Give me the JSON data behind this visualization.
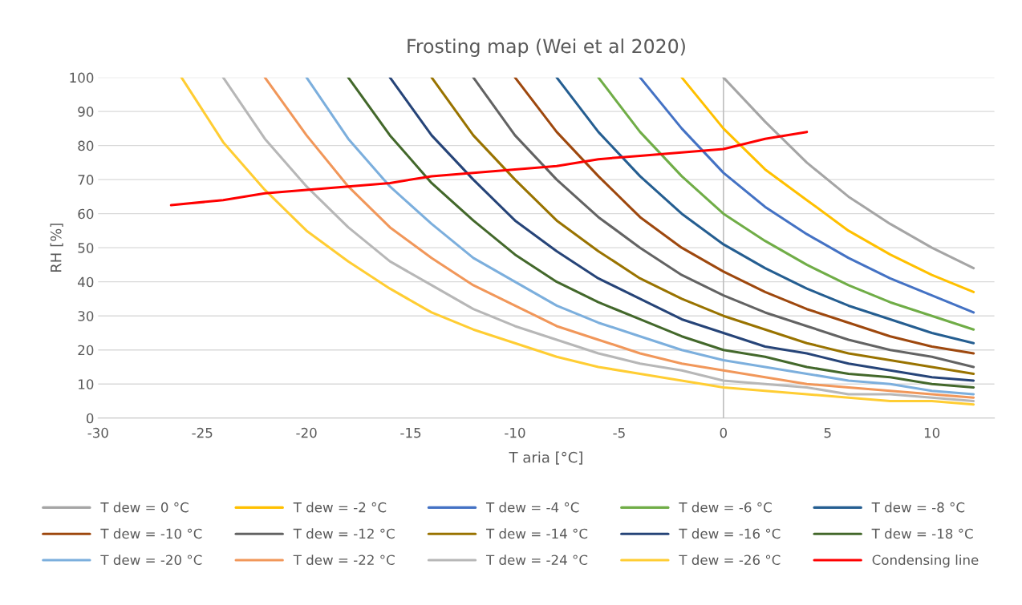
{
  "chart_data": {
    "type": "line",
    "title": "Frosting map (Wei et al 2020)",
    "xlabel": "T aria [°C]",
    "ylabel": "RH [%]",
    "xlim": [
      -30,
      13
    ],
    "xticks": [
      -30,
      -25,
      -20,
      -15,
      -10,
      -5,
      0,
      5,
      10
    ],
    "ylim": [
      0,
      100
    ],
    "yticks": [
      0,
      10,
      20,
      30,
      40,
      50,
      60,
      70,
      80,
      90,
      100
    ],
    "grid": "y",
    "legend": "bottom",
    "marker": "none",
    "line_style": "solid",
    "ref_lines": [
      {
        "axis": "x",
        "value": 0,
        "color": "#bfbfbf"
      }
    ],
    "series": [
      {
        "name": "T dew = 0 °C",
        "color": "#a5a5a5",
        "x": [
          0,
          2,
          4,
          6,
          8,
          10,
          12
        ],
        "values": [
          100,
          87,
          75,
          65,
          57,
          50,
          44
        ]
      },
      {
        "name": "T dew = -2 °C",
        "color": "#ffc000",
        "x": [
          -2,
          0,
          2,
          4,
          6,
          8,
          10,
          12
        ],
        "values": [
          100,
          85,
          73,
          64,
          55,
          48,
          42,
          37
        ]
      },
      {
        "name": "T dew = -4 °C",
        "color": "#4472c4",
        "x": [
          -4,
          -2,
          0,
          2,
          4,
          6,
          8,
          10,
          12
        ],
        "values": [
          100,
          85,
          72,
          62,
          54,
          47,
          41,
          36,
          31
        ]
      },
      {
        "name": "T dew = -6 °C",
        "color": "#70ad47",
        "x": [
          -6,
          -4,
          -2,
          0,
          2,
          4,
          6,
          8,
          10,
          12
        ],
        "values": [
          100,
          84,
          71,
          60,
          52,
          45,
          39,
          34,
          30,
          26
        ]
      },
      {
        "name": "T dew = -8 °C",
        "color": "#255e91",
        "x": [
          -8,
          -6,
          -4,
          -2,
          0,
          2,
          4,
          6,
          8,
          10,
          12
        ],
        "values": [
          100,
          84,
          71,
          60,
          51,
          44,
          38,
          33,
          29,
          25,
          22
        ]
      },
      {
        "name": "T dew = -10 °C",
        "color": "#9e480e",
        "x": [
          -10,
          -8,
          -6,
          -4,
          -2,
          0,
          2,
          4,
          6,
          8,
          10,
          12
        ],
        "values": [
          100,
          84,
          71,
          59,
          50,
          43,
          37,
          32,
          28,
          24,
          21,
          19
        ]
      },
      {
        "name": "T dew = -12 °C",
        "color": "#636363",
        "x": [
          -12,
          -10,
          -8,
          -6,
          -4,
          -2,
          0,
          2,
          4,
          6,
          8,
          10,
          12
        ],
        "values": [
          100,
          83,
          70,
          59,
          50,
          42,
          36,
          31,
          27,
          23,
          20,
          18,
          15
        ]
      },
      {
        "name": "T dew = -14 °C",
        "color": "#997300",
        "x": [
          -14,
          -12,
          -10,
          -8,
          -6,
          -4,
          -2,
          0,
          2,
          4,
          6,
          8,
          10,
          12
        ],
        "values": [
          100,
          83,
          70,
          58,
          49,
          41,
          35,
          30,
          26,
          22,
          19,
          17,
          15,
          13
        ]
      },
      {
        "name": "T dew = -16 °C",
        "color": "#264478",
        "x": [
          -16,
          -14,
          -12,
          -10,
          -8,
          -6,
          -4,
          -2,
          0,
          2,
          4,
          6,
          8,
          10,
          12
        ],
        "values": [
          100,
          83,
          70,
          58,
          49,
          41,
          35,
          29,
          25,
          21,
          19,
          16,
          14,
          12,
          11
        ]
      },
      {
        "name": "T dew = -18 °C",
        "color": "#43682b",
        "x": [
          -18,
          -16,
          -14,
          -12,
          -10,
          -8,
          -6,
          -4,
          -2,
          0,
          2,
          4,
          6,
          8,
          10,
          12
        ],
        "values": [
          100,
          83,
          69,
          58,
          48,
          40,
          34,
          29,
          24,
          20,
          18,
          15,
          13,
          12,
          10,
          9
        ]
      },
      {
        "name": "T dew = -20 °C",
        "color": "#7cafdd",
        "x": [
          -20,
          -18,
          -16,
          -14,
          -12,
          -10,
          -8,
          -6,
          -4,
          -2,
          0,
          2,
          4,
          6,
          8,
          10,
          12
        ],
        "values": [
          100,
          82,
          68,
          57,
          47,
          40,
          33,
          28,
          24,
          20,
          17,
          15,
          13,
          11,
          10,
          8,
          7
        ]
      },
      {
        "name": "T dew = -22 °C",
        "color": "#f1975a",
        "x": [
          -22,
          -20,
          -18,
          -16,
          -14,
          -12,
          -10,
          -8,
          -6,
          -4,
          -2,
          0,
          2,
          4,
          6,
          8,
          10,
          12
        ],
        "values": [
          100,
          83,
          68,
          56,
          47,
          39,
          33,
          27,
          23,
          19,
          16,
          14,
          12,
          10,
          9,
          8,
          7,
          6
        ]
      },
      {
        "name": "T dew = -24 °C",
        "color": "#b7b7b7",
        "x": [
          -24,
          -22,
          -20,
          -18,
          -16,
          -14,
          -12,
          -10,
          -8,
          -6,
          -4,
          -2,
          0,
          2,
          4,
          6,
          8,
          10,
          12
        ],
        "values": [
          100,
          82,
          68,
          56,
          46,
          39,
          32,
          27,
          23,
          19,
          16,
          14,
          11,
          10,
          9,
          7,
          7,
          6,
          5
        ]
      },
      {
        "name": "T dew = -26 °C",
        "color": "#ffcd33",
        "x": [
          -26,
          -24,
          -22,
          -20,
          -18,
          -16,
          -14,
          -12,
          -10,
          -8,
          -6,
          -4,
          -2,
          0,
          2,
          4,
          6,
          8,
          10,
          12
        ],
        "values": [
          100,
          81,
          67,
          55,
          46,
          38,
          31,
          26,
          22,
          18,
          15,
          13,
          11,
          9,
          8,
          7,
          6,
          5,
          5,
          4
        ]
      },
      {
        "name": "Condensing line",
        "color": "#ff0000",
        "x": [
          -26.5,
          -24,
          -22,
          -20,
          -18,
          -16,
          -14,
          -12,
          -10,
          -8,
          -6,
          -4,
          -2,
          0,
          2,
          4
        ],
        "values": [
          62.5,
          64,
          66,
          67,
          68,
          69,
          71,
          72,
          73,
          74,
          76,
          77,
          78,
          79,
          82,
          84
        ]
      }
    ]
  }
}
